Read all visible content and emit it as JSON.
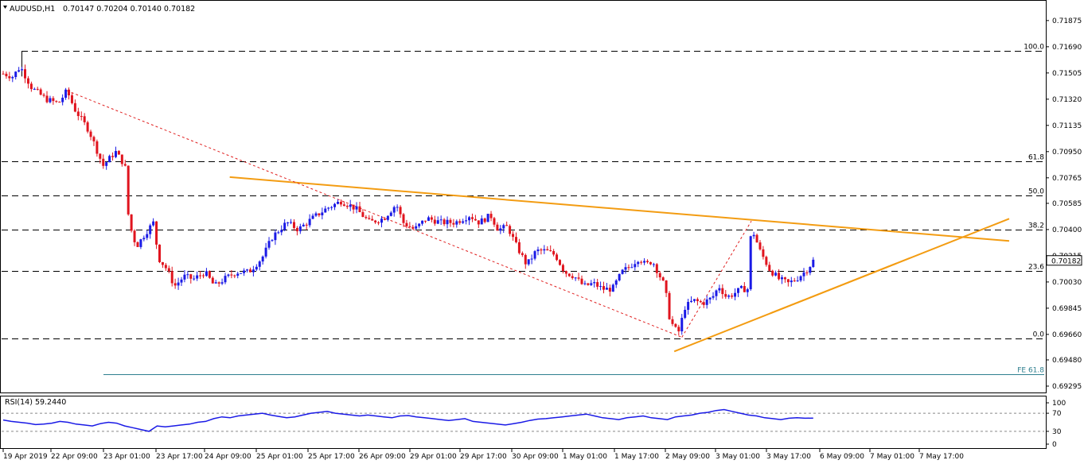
{
  "header": {
    "symbol": "AUDUSD,H1",
    "ohlc": "0.70147 0.70204 0.70140 0.70182"
  },
  "chart_data": {
    "type": "candlestick",
    "price_axis": {
      "ticks": [
        0.71875,
        0.7169,
        0.71505,
        0.7132,
        0.71135,
        0.7095,
        0.70765,
        0.70585,
        0.704,
        0.70215,
        0.7003,
        0.69845,
        0.6966,
        0.6948,
        0.69295
      ],
      "tick_labels": [
        "0.71875",
        "0.71690",
        "0.71505",
        "0.71320",
        "0.71135",
        "0.70950",
        "0.70765",
        "0.70585",
        "0.70400",
        "0.70215",
        "0.70030",
        "0.69845",
        "0.69660",
        "0.69480",
        "0.69295"
      ],
      "current_price": "0.70182",
      "range": [
        0.6925,
        0.7202
      ]
    },
    "time_labels": [
      "19 Apr 2019",
      "22 Apr 09:00",
      "23 Apr 01:00",
      "23 Apr 17:00",
      "24 Apr 09:00",
      "25 Apr 01:00",
      "25 Apr 17:00",
      "26 Apr 09:00",
      "29 Apr 01:00",
      "29 Apr 17:00",
      "30 Apr 09:00",
      "1 May 01:00",
      "1 May 17:00",
      "2 May 09:00",
      "3 May 01:00",
      "3 May 17:00",
      "6 May 09:00",
      "7 May 01:00",
      "7 May 17:00"
    ],
    "fib_levels": [
      {
        "label": "100.0",
        "price": 0.7166
      },
      {
        "label": "61.8",
        "price": 0.7088
      },
      {
        "label": "50.0",
        "price": 0.7064
      },
      {
        "label": "38.2",
        "price": 0.704
      },
      {
        "label": "23.6",
        "price": 0.7011
      },
      {
        "label": "0.0",
        "price": 0.6963
      }
    ],
    "fe_level": {
      "label": "FE 61.8",
      "price": 0.6938
    },
    "trendlines": [
      {
        "name": "upper",
        "p1": [
          0.238,
          0.7077
        ],
        "p2": [
          0.938,
          0.70385
        ]
      },
      {
        "name": "lower",
        "p1": [
          0.705,
          0.6954
        ],
        "p2": [
          0.938,
          0.7016
        ]
      },
      {
        "name": "dashed-main",
        "p1": [
          0.067,
          0.7138
        ],
        "p2": [
          0.713,
          0.6964
        ]
      },
      {
        "name": "dashed-small",
        "p1": [
          0.713,
          0.6964
        ],
        "p2": [
          0.786,
          0.7046
        ]
      }
    ],
    "pivots": [
      [
        0.0,
        0.715
      ],
      [
        0.01,
        0.7148
      ],
      [
        0.018,
        0.7155
      ],
      [
        0.03,
        0.714
      ],
      [
        0.045,
        0.7132
      ],
      [
        0.058,
        0.7129
      ],
      [
        0.067,
        0.7138
      ],
      [
        0.075,
        0.7125
      ],
      [
        0.09,
        0.711
      ],
      [
        0.105,
        0.7085
      ],
      [
        0.118,
        0.7095
      ],
      [
        0.128,
        0.7085
      ],
      [
        0.132,
        0.7045
      ],
      [
        0.14,
        0.7028
      ],
      [
        0.15,
        0.7038
      ],
      [
        0.158,
        0.7045
      ],
      [
        0.163,
        0.702
      ],
      [
        0.172,
        0.7012
      ],
      [
        0.18,
        0.7
      ],
      [
        0.19,
        0.7007
      ],
      [
        0.2,
        0.7005
      ],
      [
        0.212,
        0.701
      ],
      [
        0.222,
        0.7
      ],
      [
        0.232,
        0.7005
      ],
      [
        0.245,
        0.701
      ],
      [
        0.258,
        0.701
      ],
      [
        0.272,
        0.702
      ],
      [
        0.283,
        0.7035
      ],
      [
        0.298,
        0.7045
      ],
      [
        0.31,
        0.704
      ],
      [
        0.325,
        0.7048
      ],
      [
        0.34,
        0.7055
      ],
      [
        0.355,
        0.706
      ],
      [
        0.37,
        0.7055
      ],
      [
        0.385,
        0.7045
      ],
      [
        0.4,
        0.7048
      ],
      [
        0.413,
        0.7058
      ],
      [
        0.42,
        0.7045
      ],
      [
        0.432,
        0.704
      ],
      [
        0.445,
        0.7048
      ],
      [
        0.46,
        0.7045
      ],
      [
        0.475,
        0.7045
      ],
      [
        0.49,
        0.705
      ],
      [
        0.5,
        0.7045
      ],
      [
        0.512,
        0.705
      ],
      [
        0.52,
        0.704
      ],
      [
        0.53,
        0.7042
      ],
      [
        0.538,
        0.703
      ],
      [
        0.55,
        0.7015
      ],
      [
        0.56,
        0.7025
      ],
      [
        0.57,
        0.7025
      ],
      [
        0.58,
        0.7022
      ],
      [
        0.59,
        0.701
      ],
      [
        0.6,
        0.7007
      ],
      [
        0.61,
        0.7
      ],
      [
        0.62,
        0.7002
      ],
      [
        0.63,
        0.6998
      ],
      [
        0.64,
        0.6998
      ],
      [
        0.65,
        0.701
      ],
      [
        0.66,
        0.7015
      ],
      [
        0.668,
        0.702
      ],
      [
        0.675,
        0.7015
      ],
      [
        0.682,
        0.7018
      ],
      [
        0.695,
        0.7
      ],
      [
        0.7,
        0.6978
      ],
      [
        0.705,
        0.697
      ],
      [
        0.71,
        0.6968
      ],
      [
        0.716,
        0.6985
      ],
      [
        0.725,
        0.699
      ],
      [
        0.735,
        0.6988
      ],
      [
        0.745,
        0.6992
      ],
      [
        0.752,
        0.7
      ],
      [
        0.76,
        0.6992
      ],
      [
        0.768,
        0.6995
      ],
      [
        0.775,
        0.6998
      ],
      [
        0.782,
        0.6998
      ],
      [
        0.786,
        0.7042
      ],
      [
        0.795,
        0.7025
      ],
      [
        0.805,
        0.7012
      ],
      [
        0.815,
        0.7005
      ],
      [
        0.825,
        0.7002
      ],
      [
        0.835,
        0.7006
      ],
      [
        0.845,
        0.7012
      ],
      [
        0.851,
        0.7018
      ]
    ],
    "rsi": {
      "label": "RSI(14) 59.2440",
      "levels": [
        70,
        30
      ],
      "tick_labels": [
        "100",
        "70",
        "30",
        "0"
      ],
      "values": [
        55,
        52,
        50,
        48,
        45,
        46,
        48,
        52,
        50,
        46,
        44,
        42,
        47,
        50,
        48,
        42,
        38,
        34,
        30,
        42,
        40,
        42,
        44,
        46,
        50,
        52,
        58,
        62,
        60,
        64,
        66,
        68,
        70,
        66,
        63,
        60,
        62,
        66,
        70,
        72,
        74,
        70,
        68,
        66,
        64,
        66,
        64,
        62,
        60,
        64,
        65,
        62,
        60,
        58,
        56,
        54,
        56,
        58,
        52,
        50,
        48,
        46,
        44,
        47,
        50,
        54,
        57,
        58,
        60,
        62,
        64,
        66,
        68,
        64,
        60,
        58,
        56,
        60,
        62,
        64,
        60,
        58,
        56,
        62,
        64,
        66,
        70,
        72,
        76,
        78,
        74,
        70,
        66,
        64,
        60,
        58,
        56,
        59,
        60,
        59,
        59.24
      ]
    }
  }
}
